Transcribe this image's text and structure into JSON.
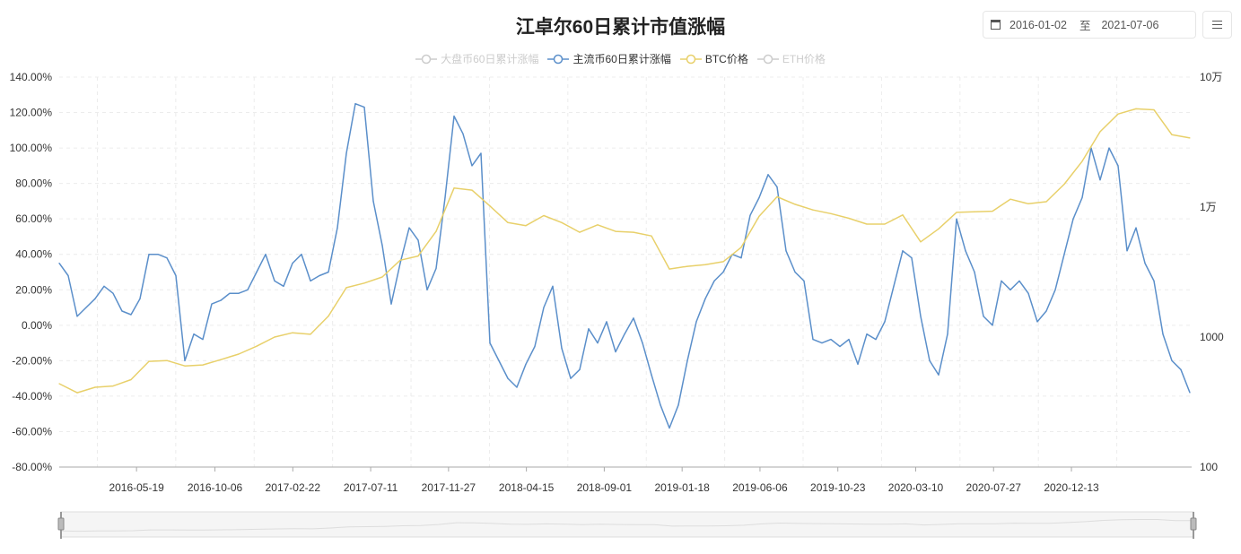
{
  "title": "江卓尔60日累计市值涨幅",
  "date_range": {
    "start": "2016-01-02",
    "separator": "至",
    "end": "2021-07-06",
    "icon": "calendar-icon"
  },
  "menu": {
    "icon": "hamburger-menu-icon"
  },
  "legend": [
    {
      "label": "大盘币60日累计涨幅",
      "color": "#cccccc",
      "active": false
    },
    {
      "label": "主流币60日累计涨幅",
      "color": "#5b8fca",
      "active": true
    },
    {
      "label": "BTC价格",
      "color": "#e8d06a",
      "active": true
    },
    {
      "label": "ETH价格",
      "color": "#cccccc",
      "active": false
    }
  ],
  "chart_data": {
    "type": "line",
    "x_range": [
      "2016-01-02",
      "2021-07-06"
    ],
    "x_sampling": "evenly spaced over x_range",
    "x_tick_labels": [
      "2016-05-19",
      "2016-10-06",
      "2017-02-22",
      "2017-07-11",
      "2017-11-27",
      "2018-04-15",
      "2018-09-01",
      "2019-01-18",
      "2019-06-06",
      "2019-10-23",
      "2020-03-10",
      "2020-07-27",
      "2020-12-13"
    ],
    "y_left": {
      "ticks": [
        "140.00%",
        "120.00%",
        "100.00%",
        "80.00%",
        "60.00%",
        "40.00%",
        "20.00%",
        "0.00%",
        "-20.00%",
        "-40.00%",
        "-60.00%",
        "-80.00%"
      ],
      "min": -80,
      "max": 140
    },
    "y_right": {
      "scale": "log",
      "ticks": [
        "10万",
        "1万",
        "1000",
        "100"
      ],
      "min": 100,
      "max": 100000
    },
    "grid": true,
    "legend_position": "top",
    "series": [
      {
        "name": "主流币60日累计涨幅",
        "axis": "left",
        "color": "#5b8fca",
        "values": [
          35,
          28,
          5,
          10,
          15,
          22,
          18,
          8,
          6,
          15,
          40,
          40,
          38,
          28,
          -20,
          -5,
          -8,
          12,
          14,
          18,
          18,
          20,
          30,
          40,
          25,
          22,
          35,
          40,
          25,
          28,
          30,
          55,
          97,
          125,
          123,
          70,
          45,
          12,
          35,
          55,
          48,
          20,
          32,
          72,
          118,
          108,
          90,
          97,
          -10,
          -20,
          -30,
          -35,
          -22,
          -12,
          10,
          22,
          -13,
          -30,
          -25,
          -2,
          -10,
          2,
          -15,
          -5,
          4,
          -10,
          -28,
          -45,
          -58,
          -45,
          -20,
          2,
          15,
          25,
          30,
          40,
          38,
          62,
          72,
          85,
          78,
          42,
          30,
          25,
          -8,
          -10,
          -8,
          -12,
          -8,
          -22,
          -5,
          -8,
          2,
          22,
          42,
          38,
          5,
          -20,
          -28,
          -5,
          60,
          42,
          30,
          5,
          0,
          25,
          20,
          25,
          18,
          2,
          8,
          20,
          40,
          60,
          72,
          100,
          82,
          100,
          90,
          42,
          55,
          35,
          25,
          -5,
          -20,
          -25,
          -38
        ]
      },
      {
        "name": "BTC价格",
        "axis": "right",
        "color": "#e8d06a",
        "values": [
          438,
          373,
          411,
          420,
          470,
          650,
          660,
          600,
          610,
          670,
          740,
          850,
          1000,
          1080,
          1050,
          1450,
          2400,
          2600,
          2900,
          3900,
          4200,
          6500,
          14000,
          13500,
          10200,
          7600,
          7200,
          8600,
          7600,
          6400,
          7300,
          6500,
          6400,
          6000,
          3340,
          3500,
          3600,
          3800,
          4900,
          8500,
          12000,
          10500,
          9500,
          8900,
          8200,
          7400,
          7400,
          8700,
          5400,
          6800,
          9100,
          9200,
          9300,
          11500,
          10600,
          11000,
          15000,
          22500,
          38000,
          52000,
          57000,
          56000,
          36000,
          34000
        ]
      }
    ]
  },
  "data_zoom": {
    "start_percent": 0,
    "end_percent": 100
  }
}
